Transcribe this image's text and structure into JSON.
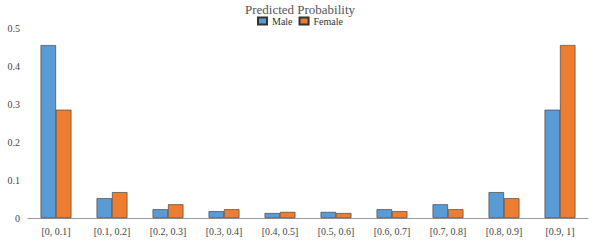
{
  "chart_data": {
    "type": "bar",
    "title": "Predicted Probability",
    "categories": [
      "[0, 0.1]",
      "[0.1, 0.2]",
      "[0.2, 0.3]",
      "[0.3, 0.4]",
      "[0.4, 0.5]",
      "[0.5, 0.6]",
      "[0.6, 0.7]",
      "[0.7, 0.8]",
      "[0.8, 0.9]",
      "[0.9, 1]"
    ],
    "series": [
      {
        "name": "Male",
        "color": "#5b9bd5",
        "values": [
          0.455,
          0.052,
          0.023,
          0.018,
          0.013,
          0.016,
          0.023,
          0.036,
          0.068,
          0.285
        ]
      },
      {
        "name": "Female",
        "color": "#ed7d31",
        "values": [
          0.285,
          0.068,
          0.036,
          0.023,
          0.016,
          0.013,
          0.018,
          0.023,
          0.052,
          0.455
        ]
      }
    ],
    "ylim": [
      0,
      0.5
    ],
    "yticks": [
      0,
      0.1,
      0.2,
      0.3,
      0.4,
      0.5
    ],
    "grid": false,
    "legend": "top"
  }
}
